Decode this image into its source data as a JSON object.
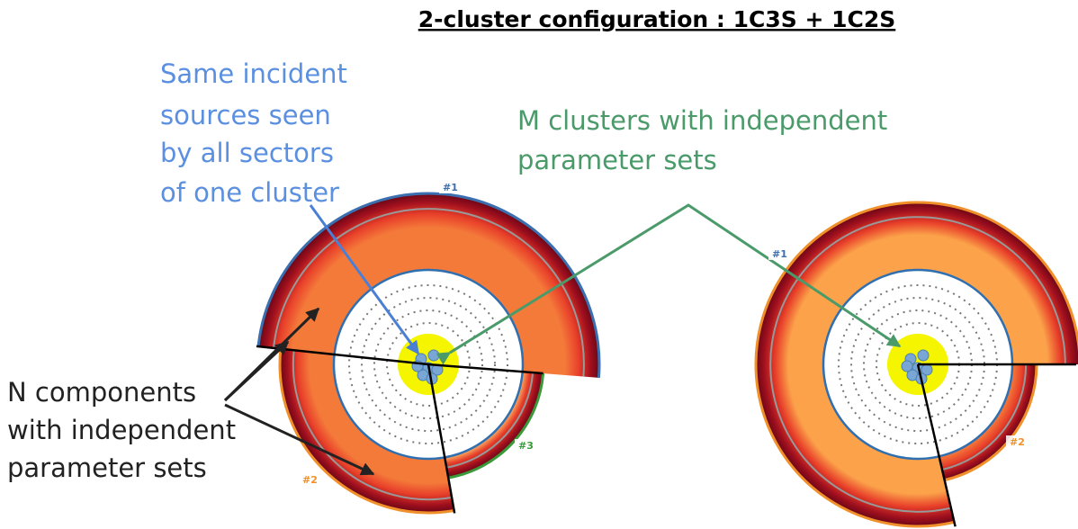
{
  "title": "2-cluster configuration : 1C3S + 1C2S",
  "annotations": [
    {
      "lines": [
        "Same incident",
        "sources seen",
        "by all sectors",
        "of one cluster"
      ]
    },
    {
      "lines": [
        "M clusters with independent",
        "parameter sets"
      ]
    },
    {
      "lines": [
        "N components",
        "with independent",
        "parameter sets"
      ]
    }
  ],
  "clusters": [
    {
      "sectors": [
        {
          "label": "#1"
        },
        {
          "label": "#2"
        },
        {
          "label": "#3"
        }
      ]
    },
    {
      "sectors": [
        {
          "label": "#1"
        },
        {
          "label": "#2"
        }
      ]
    }
  ]
}
